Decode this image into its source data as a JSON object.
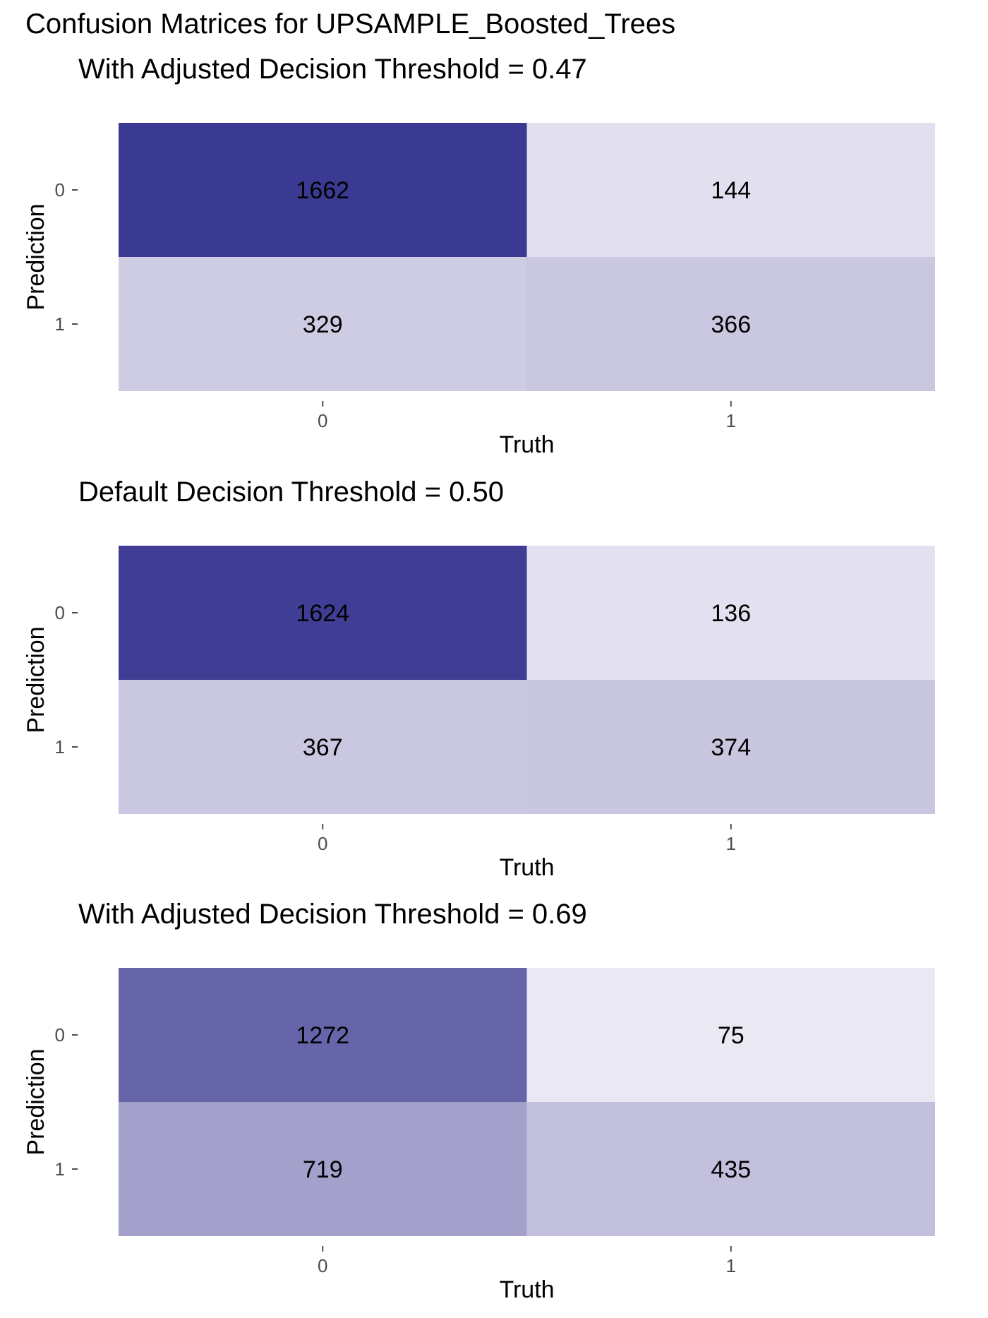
{
  "page_title": "Confusion Matrices for UPSAMPLE_Boosted_Trees",
  "chart_data": [
    {
      "type": "heatmap",
      "title": "With Adjusted Decision Threshold = 0.47",
      "xlabel": "Truth",
      "ylabel": "Prediction",
      "x_categories": [
        "0",
        "1"
      ],
      "y_categories": [
        "0",
        "1"
      ],
      "cells": [
        {
          "truth": "0",
          "prediction": "0",
          "value": 1662
        },
        {
          "truth": "1",
          "prediction": "0",
          "value": 144
        },
        {
          "truth": "0",
          "prediction": "1",
          "value": 329
        },
        {
          "truth": "1",
          "prediction": "1",
          "value": 366
        }
      ]
    },
    {
      "type": "heatmap",
      "title": "Default Decision Threshold = 0.50",
      "xlabel": "Truth",
      "ylabel": "Prediction",
      "x_categories": [
        "0",
        "1"
      ],
      "y_categories": [
        "0",
        "1"
      ],
      "cells": [
        {
          "truth": "0",
          "prediction": "0",
          "value": 1624
        },
        {
          "truth": "1",
          "prediction": "0",
          "value": 136
        },
        {
          "truth": "0",
          "prediction": "1",
          "value": 367
        },
        {
          "truth": "1",
          "prediction": "1",
          "value": 374
        }
      ]
    },
    {
      "type": "heatmap",
      "title": "With Adjusted Decision Threshold = 0.69",
      "xlabel": "Truth",
      "ylabel": "Prediction",
      "x_categories": [
        "0",
        "1"
      ],
      "y_categories": [
        "0",
        "1"
      ],
      "cells": [
        {
          "truth": "0",
          "prediction": "0",
          "value": 1272
        },
        {
          "truth": "1",
          "prediction": "0",
          "value": 75
        },
        {
          "truth": "0",
          "prediction": "1",
          "value": 719
        },
        {
          "truth": "1",
          "prediction": "1",
          "value": 435
        }
      ]
    }
  ],
  "colors": {
    "low": "#f2f0f7",
    "high": "#3b3a92",
    "text": "#000000",
    "axis_text": "#4d4d4d"
  }
}
